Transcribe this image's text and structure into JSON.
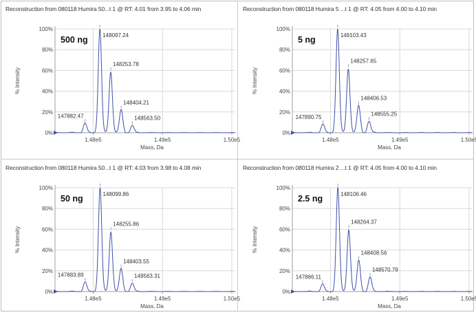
{
  "chart_data": [
    {
      "type": "line",
      "title": "Reconstruction from 080118 Humira 50...t 1 @ RT: 4.01 from 3.95 to 4.06 min",
      "concentration_label": "500 ng",
      "xlabel": "Mass, Da",
      "ylabel": "% Intensity",
      "xlim": [
        147450,
        150050
      ],
      "ylim": [
        0,
        100
      ],
      "x_ticks": [
        "1.48e5",
        "1.49e5",
        "1.50e5"
      ],
      "y_ticks": [
        "0%",
        "20%",
        "40%",
        "60%",
        "80%",
        "100%"
      ],
      "grid": true,
      "peaks": [
        {
          "x": 147882.47,
          "y": 9,
          "label": "147882.47"
        },
        {
          "x": 148097.24,
          "y": 100,
          "label": "148097.24"
        },
        {
          "x": 148253.78,
          "y": 59,
          "label": "148253.78"
        },
        {
          "x": 148404.21,
          "y": 22,
          "label": "148404.21"
        },
        {
          "x": 148563.5,
          "y": 7,
          "label": "148563.50"
        }
      ]
    },
    {
      "type": "line",
      "title": "Reconstruction from 080118 Humira 5 ...t 1 @ RT: 4.05 from 4.00 to 4.10 min",
      "concentration_label": "5 ng",
      "xlabel": "Mass, Da",
      "ylabel": "% Intensity",
      "xlim": [
        147450,
        150050
      ],
      "ylim": [
        0,
        100
      ],
      "x_ticks": [
        "1.48e5",
        "1.49e5",
        "1.50e5"
      ],
      "y_ticks": [
        "0%",
        "20%",
        "40%",
        "60%",
        "80%",
        "100%"
      ],
      "grid": true,
      "peaks": [
        {
          "x": 147890.75,
          "y": 8,
          "label": "147890.75"
        },
        {
          "x": 148103.43,
          "y": 100,
          "label": "148103.43"
        },
        {
          "x": 148257.65,
          "y": 62,
          "label": "148257.65"
        },
        {
          "x": 148406.53,
          "y": 26,
          "label": "148406.53"
        },
        {
          "x": 148555.25,
          "y": 11,
          "label": "148555.25"
        }
      ]
    },
    {
      "type": "line",
      "title": "Reconstruction from 080118 Humira 50...t 1 @ RT: 4.03 from 3.98 to 4.08 min",
      "concentration_label": "50 ng",
      "xlabel": "Mass, Da",
      "ylabel": "% Intensity",
      "xlim": [
        147450,
        150050
      ],
      "ylim": [
        0,
        100
      ],
      "x_ticks": [
        "1.48e5",
        "1.49e5",
        "1.50e5"
      ],
      "y_ticks": [
        "0%",
        "20%",
        "40%",
        "60%",
        "80%",
        "100%"
      ],
      "grid": true,
      "peaks": [
        {
          "x": 147883.89,
          "y": 9,
          "label": "147883.89"
        },
        {
          "x": 148099.86,
          "y": 100,
          "label": "148099.86"
        },
        {
          "x": 148255.86,
          "y": 58,
          "label": "148255.86"
        },
        {
          "x": 148403.55,
          "y": 22,
          "label": "148403.55"
        },
        {
          "x": 148563.31,
          "y": 8,
          "label": "148563.31"
        }
      ]
    },
    {
      "type": "line",
      "title": "Reconstruction from 080118 Humira 2 ...t 1 @ RT: 4.05 from 4.00 to 4.10 min",
      "concentration_label": "2.5 ng",
      "xlabel": "Mass, Da",
      "ylabel": "% Intensity",
      "xlim": [
        147450,
        150050
      ],
      "ylim": [
        0,
        100
      ],
      "x_ticks": [
        "1.48e5",
        "1.49e5",
        "1.50e5"
      ],
      "y_ticks": [
        "0%",
        "20%",
        "40%",
        "60%",
        "80%",
        "100%"
      ],
      "grid": true,
      "peaks": [
        {
          "x": 147886.11,
          "y": 7,
          "label": "147886.11"
        },
        {
          "x": 148106.46,
          "y": 100,
          "label": "148106.46"
        },
        {
          "x": 148264.37,
          "y": 60,
          "label": "148264.37"
        },
        {
          "x": 148408.56,
          "y": 30,
          "label": "148408.56"
        },
        {
          "x": 148570.79,
          "y": 14,
          "label": "148570.79"
        }
      ]
    }
  ],
  "colors": {
    "trace": "#3d4fa8",
    "grid": "#d8d8d8",
    "axis": "#9e9e9e"
  }
}
